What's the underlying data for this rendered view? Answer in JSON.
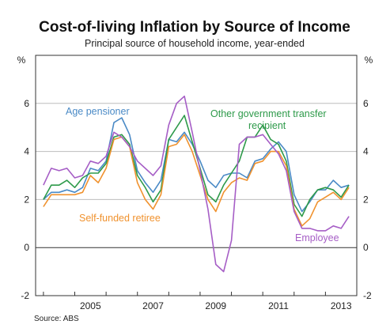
{
  "title": "Cost-of-living Inflation by Source of Income",
  "subtitle": "Principal source of household income, year-ended",
  "source": "Source: ABS",
  "chart_data": {
    "type": "line",
    "y_unit": "%",
    "ylim": [
      -2,
      8
    ],
    "yticks": [
      -2,
      0,
      2,
      4,
      6
    ],
    "xlim": [
      2003.75,
      2014.0
    ],
    "xticks": [
      {
        "value": 2005.5,
        "label": "2005"
      },
      {
        "value": 2007.5,
        "label": "2007"
      },
      {
        "value": 2009.5,
        "label": "2009"
      },
      {
        "value": 2011.5,
        "label": "2011"
      },
      {
        "value": 2013.5,
        "label": "2013"
      }
    ],
    "grid": true,
    "series": [
      {
        "name": "Age pensioner",
        "color": "#4a8ac6",
        "x": [
          2004.0,
          2004.25,
          2004.5,
          2004.75,
          2005.0,
          2005.25,
          2005.5,
          2005.75,
          2006.0,
          2006.25,
          2006.5,
          2006.75,
          2007.0,
          2007.25,
          2007.5,
          2007.75,
          2008.0,
          2008.25,
          2008.5,
          2008.75,
          2009.0,
          2009.25,
          2009.5,
          2009.75,
          2010.0,
          2010.25,
          2010.5,
          2010.75,
          2011.0,
          2011.25,
          2011.5,
          2011.75,
          2012.0,
          2012.25,
          2012.5,
          2012.75,
          2013.0,
          2013.25,
          2013.5,
          2013.75
        ],
        "values": [
          2.0,
          2.3,
          2.3,
          2.4,
          2.3,
          2.5,
          3.3,
          3.2,
          3.6,
          5.2,
          5.4,
          4.7,
          3.2,
          2.7,
          2.3,
          2.8,
          4.5,
          4.4,
          4.8,
          4.3,
          3.6,
          2.8,
          2.5,
          3.0,
          3.1,
          3.1,
          2.9,
          3.6,
          3.7,
          4.1,
          4.4,
          4.0,
          2.2,
          1.5,
          1.9,
          2.4,
          2.4,
          2.8,
          2.5,
          2.6
        ]
      },
      {
        "name": "Other government transfer recipient",
        "color": "#2e9a4a",
        "x": [
          2004.0,
          2004.25,
          2004.5,
          2004.75,
          2005.0,
          2005.25,
          2005.5,
          2005.75,
          2006.0,
          2006.25,
          2006.5,
          2006.75,
          2007.0,
          2007.25,
          2007.5,
          2007.75,
          2008.0,
          2008.25,
          2008.5,
          2008.75,
          2009.0,
          2009.25,
          2009.5,
          2009.75,
          2010.0,
          2010.25,
          2010.5,
          2010.75,
          2011.0,
          2011.25,
          2011.5,
          2011.75,
          2012.0,
          2012.25,
          2012.5,
          2012.75,
          2013.0,
          2013.25,
          2013.5,
          2013.75
        ],
        "values": [
          2.0,
          2.6,
          2.6,
          2.8,
          2.5,
          2.9,
          3.1,
          3.1,
          3.5,
          4.6,
          4.7,
          4.3,
          3.0,
          2.5,
          1.9,
          2.4,
          4.5,
          5.0,
          5.5,
          4.4,
          3.3,
          2.2,
          1.9,
          2.6,
          3.1,
          3.6,
          4.6,
          4.6,
          5.1,
          4.5,
          4.3,
          3.6,
          1.8,
          1.3,
          2.0,
          2.4,
          2.5,
          2.4,
          2.1,
          2.6
        ]
      },
      {
        "name": "Self-funded retiree",
        "color": "#f0922e",
        "x": [
          2004.0,
          2004.25,
          2004.5,
          2004.75,
          2005.0,
          2005.25,
          2005.5,
          2005.75,
          2006.0,
          2006.25,
          2006.5,
          2006.75,
          2007.0,
          2007.25,
          2007.5,
          2007.75,
          2008.0,
          2008.25,
          2008.5,
          2008.75,
          2009.0,
          2009.25,
          2009.5,
          2009.75,
          2010.0,
          2010.25,
          2010.5,
          2010.75,
          2011.0,
          2011.25,
          2011.5,
          2011.75,
          2012.0,
          2012.25,
          2012.5,
          2012.75,
          2013.0,
          2013.25,
          2013.5,
          2013.75
        ],
        "values": [
          1.7,
          2.2,
          2.2,
          2.2,
          2.2,
          2.3,
          3.0,
          2.7,
          3.3,
          4.5,
          4.6,
          4.2,
          2.7,
          2.0,
          1.6,
          2.2,
          4.2,
          4.3,
          4.7,
          4.0,
          3.0,
          2.0,
          1.5,
          2.3,
          2.7,
          2.9,
          2.8,
          3.5,
          3.6,
          4.0,
          4.0,
          3.4,
          1.6,
          0.9,
          1.2,
          1.9,
          2.1,
          2.3,
          2.0,
          2.5
        ]
      },
      {
        "name": "Employee",
        "color": "#a65ec6",
        "x": [
          2004.0,
          2004.25,
          2004.5,
          2004.75,
          2005.0,
          2005.25,
          2005.5,
          2005.75,
          2006.0,
          2006.25,
          2006.5,
          2006.75,
          2007.0,
          2007.25,
          2007.5,
          2007.75,
          2008.0,
          2008.25,
          2008.5,
          2008.75,
          2009.0,
          2009.25,
          2009.5,
          2009.75,
          2010.0,
          2010.25,
          2010.5,
          2010.75,
          2011.0,
          2011.25,
          2011.5,
          2011.75,
          2012.0,
          2012.25,
          2012.5,
          2012.75,
          2013.0,
          2013.25,
          2013.5,
          2013.75
        ],
        "values": [
          2.6,
          3.3,
          3.2,
          3.3,
          2.9,
          3.0,
          3.6,
          3.5,
          3.8,
          4.8,
          4.6,
          4.2,
          3.6,
          3.3,
          3.0,
          3.4,
          5.1,
          6.0,
          6.3,
          4.8,
          3.2,
          1.6,
          -0.7,
          -1.0,
          0.3,
          4.3,
          4.6,
          4.6,
          4.7,
          4.3,
          3.9,
          3.2,
          1.5,
          0.8,
          0.8,
          0.7,
          0.7,
          0.9,
          0.8,
          1.3
        ]
      }
    ]
  },
  "labels": {
    "age_pensioner": "Age pensioner",
    "other_gov_line1": "Other government transfer",
    "other_gov_line2": "recipient",
    "self_funded": "Self-funded retiree",
    "employee": "Employee"
  }
}
